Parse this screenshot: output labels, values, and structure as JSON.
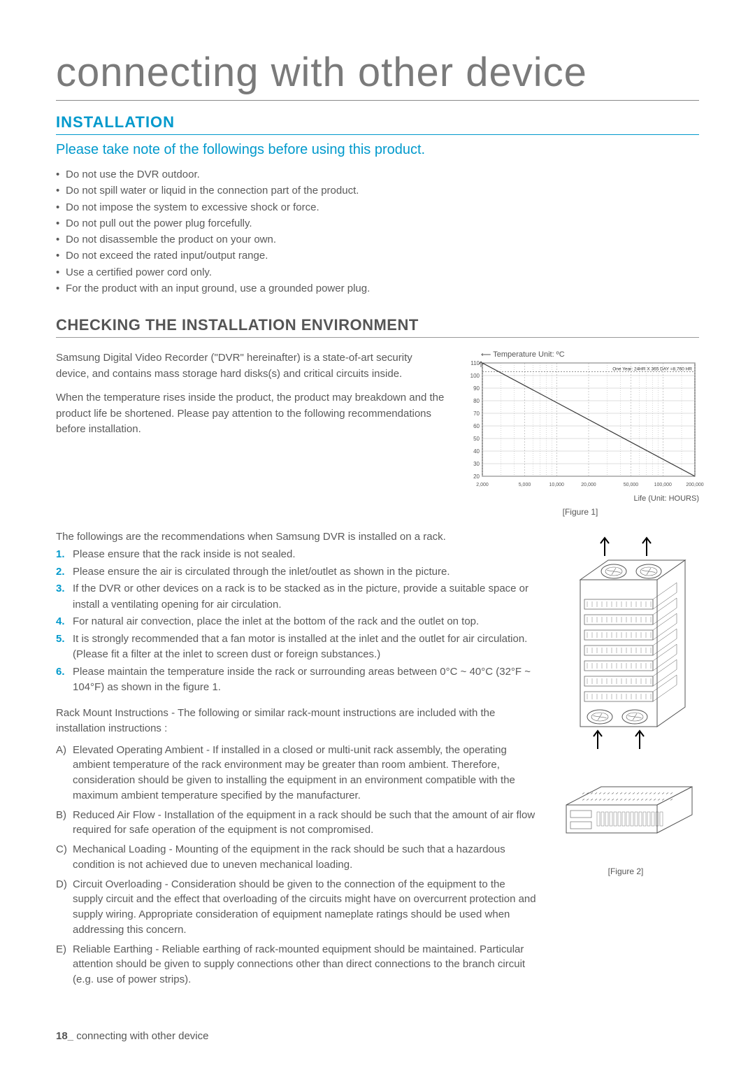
{
  "page_title": "connecting with other device",
  "installation": {
    "heading": "INSTALLATION",
    "subtitle": "Please take note of the followings before using this product.",
    "bullets": [
      "Do not use the DVR outdoor.",
      "Do not spill water or liquid in the connection part of the product.",
      "Do not impose the system to excessive shock or force.",
      "Do not pull out the power plug forcefully.",
      "Do not disassemble the product on your own.",
      "Do not exceed the rated input/output range.",
      "Use a certified power cord only.",
      "For the product with an input ground, use a grounded power plug."
    ]
  },
  "env": {
    "heading": "CHECKING THE INSTALLATION ENVIRONMENT",
    "para1": "Samsung Digital Video Recorder (\"DVR\" hereinafter) is a state-of-art security device, and contains mass storage hard disks(s) and critical circuits inside.",
    "para2": "When the temperature rises inside the product, the product may breakdown and the product life be shortened. Please pay attention to the following recommendations before installation.",
    "chart": {
      "type": "line",
      "title_top": "Temperature Unit: ºC",
      "annotation": "One Year: 24HR X 365 DAY =8,760 HR",
      "y_ticks": [
        20,
        30,
        40,
        50,
        60,
        70,
        80,
        90,
        100,
        110
      ],
      "x_ticks_labels": [
        "2,000",
        "5,000",
        "10,000",
        "20,000",
        "50,000",
        "100,000",
        "200,000"
      ],
      "x_log_positions": [
        2000,
        5000,
        10000,
        20000,
        50000,
        100000,
        200000
      ],
      "line_points_xy": [
        [
          2000,
          110
        ],
        [
          200000,
          20
        ]
      ],
      "xlabel": "Life (Unit: HOURS)",
      "grid_color": "#bbbbbb",
      "dash_color": "#999999",
      "line_color": "#333333",
      "bg": "#ffffff",
      "caption": "[Figure 1]"
    },
    "rec_intro": "The followings are the recommendations when Samsung DVR is installed on a rack.",
    "numbered": [
      "Please ensure that the rack inside is not sealed.",
      "Please ensure the air is circulated through the inlet/outlet as shown in the picture.",
      "If the DVR or other devices on a rack is to be stacked as in the picture, provide a suitable space or install a ventilating opening for air circulation.",
      "For natural air convection, place the inlet at the bottom of the rack and the outlet on top.",
      "It is strongly recommended that a fan motor is installed at the inlet and the outlet for air circulation. (Please fit a filter at the inlet to screen dust or foreign substances.)",
      "Please maintain the temperature inside the rack or surrounding areas between 0°C ~ 40°C (32°F ~ 104°F) as shown in the figure 1."
    ],
    "rack_intro": "Rack Mount Instructions - The following or similar rack-mount instructions are included with the installation instructions :",
    "lettered": [
      {
        "l": "A)",
        "t": "Elevated Operating Ambient - If installed in a closed or multi-unit rack assembly, the operating ambient temperature of the rack environment may be greater than room ambient. Therefore, consideration should be given to installing the equipment in an environment compatible with the maximum ambient temperature specified by the manufacturer."
      },
      {
        "l": "B)",
        "t": "Reduced Air Flow - Installation of the equipment in a rack should be such that the amount of air flow required for safe operation of the equipment is not compromised."
      },
      {
        "l": "C)",
        "t": "Mechanical Loading - Mounting of the equipment in the rack should be such that a hazardous condition is not achieved due to uneven mechanical loading."
      },
      {
        "l": "D)",
        "t": "Circuit Overloading - Consideration should be given to the connection of the equipment to the supply circuit and the effect that overloading of the circuits might have on overcurrent protection and supply wiring. Appropriate consideration of equipment nameplate ratings should be used when addressing this concern."
      },
      {
        "l": "E)",
        "t": "Reliable Earthing - Reliable earthing of rack-mounted equipment should be maintained. Particular attention should be given to supply connections other than direct connections to the branch circuit (e.g. use of power strips)."
      }
    ],
    "fig2_caption": "[Figure 2]"
  },
  "footer": {
    "page": "18_",
    "text": "connecting with other device"
  },
  "colors": {
    "accent": "#0099cc",
    "text": "#5a5a5a"
  }
}
